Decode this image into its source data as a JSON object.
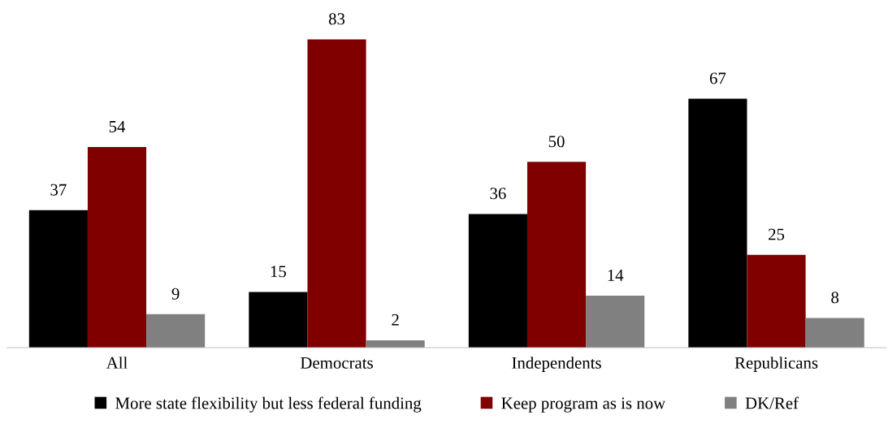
{
  "chart_data": {
    "type": "bar",
    "categories": [
      "All",
      "Democrats",
      "Independents",
      "Republicans"
    ],
    "series": [
      {
        "name": "More state flexibility but less federal funding",
        "color": "#000000",
        "values": [
          37,
          15,
          36,
          67
        ]
      },
      {
        "name": "Keep program as is now",
        "color": "#800000",
        "values": [
          54,
          83,
          50,
          25
        ]
      },
      {
        "name": "DK/Ref",
        "color": "#808080",
        "values": [
          9,
          2,
          14,
          8
        ]
      }
    ],
    "data_labels": true,
    "grid": false,
    "legend": "bottom"
  }
}
